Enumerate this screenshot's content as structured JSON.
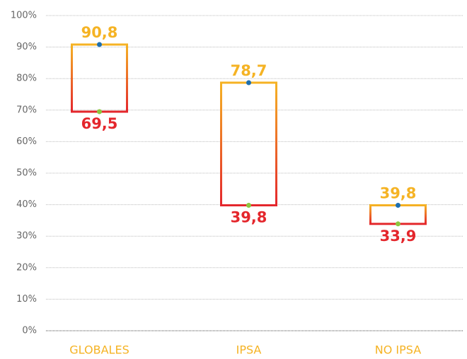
{
  "chart_data": {
    "type": "range",
    "categories": [
      "GLOBALES",
      "IPSA",
      "NO IPSA"
    ],
    "high": {
      "values": [
        90.8,
        78.7,
        39.8
      ],
      "value_labels": [
        "90,8",
        "78,7",
        "39,8"
      ],
      "color": "#f5b324",
      "dot_color": "#1f6fae"
    },
    "low": {
      "values": [
        69.5,
        39.8,
        33.9
      ],
      "value_labels": [
        "69,5",
        "39,8",
        "33,9"
      ],
      "color": "#e4262c",
      "dot_color": "#8dc63f"
    },
    "ylim": [
      0,
      100
    ],
    "yticks": [
      {
        "value": 0,
        "label": "0%"
      },
      {
        "value": 10,
        "label": "10%"
      },
      {
        "value": 20,
        "label": "20%"
      },
      {
        "value": 30,
        "label": "30%"
      },
      {
        "value": 40,
        "label": "40%"
      },
      {
        "value": 50,
        "label": "50%"
      },
      {
        "value": 60,
        "label": "60%"
      },
      {
        "value": 70,
        "label": "70%"
      },
      {
        "value": 80,
        "label": "80%"
      },
      {
        "value": 90,
        "label": "90%"
      },
      {
        "value": 100,
        "label": "100%"
      }
    ],
    "grid": true
  }
}
